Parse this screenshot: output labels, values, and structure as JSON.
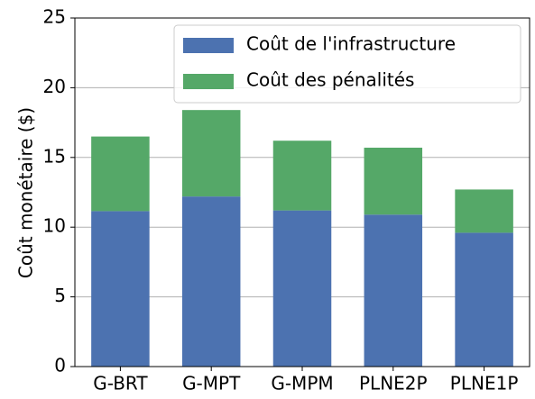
{
  "chart_data": {
    "type": "stacked_bar",
    "ylabel": "Coût monétaire ($)",
    "categories": [
      "G-BRT",
      "G-MPT",
      "G-MPM",
      "PLNE2P",
      "PLNE1P"
    ],
    "series": [
      {
        "name": "Coût de l'infrastructure",
        "color": "#4c72b0",
        "values": [
          11.15,
          12.2,
          11.2,
          10.9,
          9.6
        ]
      },
      {
        "name": "Coût des pénalités",
        "color": "#55a868",
        "values": [
          5.35,
          6.2,
          5.0,
          4.8,
          3.1
        ]
      }
    ],
    "ylim": [
      0,
      25
    ],
    "yticks": [
      0,
      5,
      10,
      15,
      20,
      25
    ],
    "grid": true,
    "legend": "upper right"
  }
}
